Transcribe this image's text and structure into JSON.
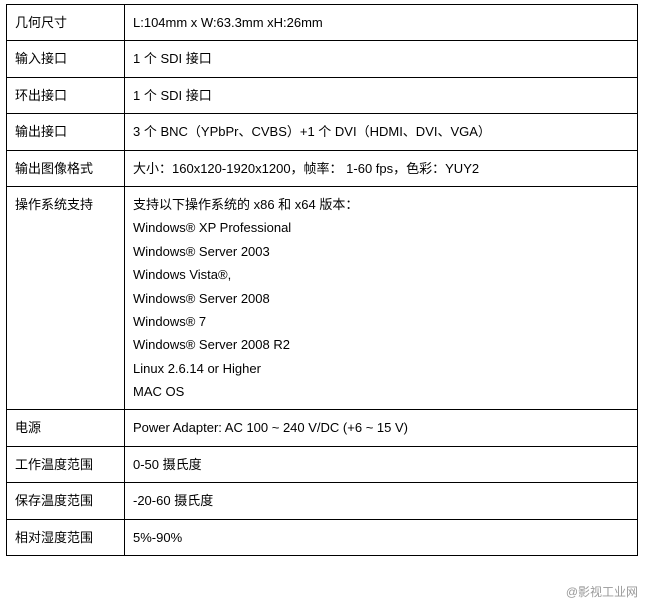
{
  "table": {
    "border_color": "#000000",
    "background_color": "#ffffff",
    "text_color": "#000000",
    "font_size": 13,
    "label_col_width": 118,
    "total_width": 632,
    "rows": [
      {
        "label": "几何尺寸",
        "value": "L:104mm x W:63.3mm xH:26mm"
      },
      {
        "label": "输入接口",
        "value": "1 个 SDI 接口"
      },
      {
        "label": "环出接口",
        "value": "1 个 SDI 接口"
      },
      {
        "label": "输出接口",
        "value": "3 个 BNC（YPbPr、CVBS）+1 个 DVI（HDMI、DVI、VGA）"
      },
      {
        "label": "输出图像格式",
        "value": "大小：160x120-1920x1200，帧率：  1-60 fps，色彩：YUY2"
      },
      {
        "label": "操作系统支持",
        "value_lines": [
          "支持以下操作系统的 x86 和 x64 版本：",
          "Windows® XP Professional",
          "Windows® Server 2003",
          "Windows Vista®,",
          "Windows® Server 2008",
          "Windows® 7",
          "Windows® Server 2008 R2",
          "Linux 2.6.14 or Higher",
          "MAC OS"
        ]
      },
      {
        "label": "电源",
        "value": "Power Adapter: AC 100 ~ 240 V/DC (+6 ~ 15 V)"
      },
      {
        "label": "工作温度范围",
        "value": "0-50 摄氏度"
      },
      {
        "label": "保存温度范围",
        "value": "-20-60 摄氏度"
      },
      {
        "label": "相对湿度范围",
        "value": "5%-90%"
      }
    ]
  },
  "watermark": {
    "text": "@影视工业网",
    "color": "#999999",
    "font_size": 12
  }
}
